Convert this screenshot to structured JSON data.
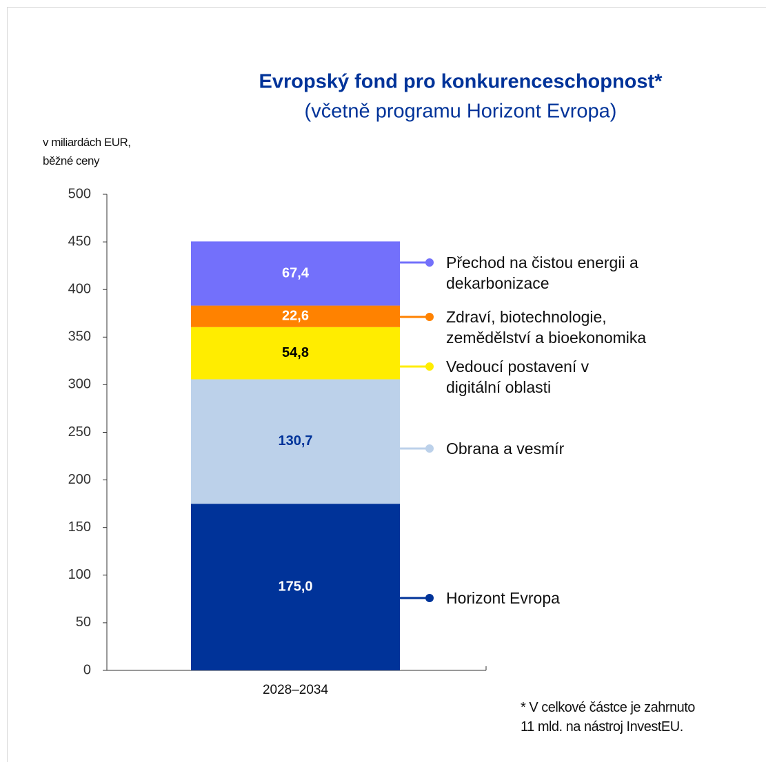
{
  "chart_data": {
    "type": "stacked_bar",
    "title": "Evropský fond pro konkurenceschopnost*",
    "subtitle": "(včetně programu Horizont Evropa)",
    "y_axis_label": "v miliardách EUR,\nběžné ceny",
    "footnote": "* V celkové částce je zahrnuto\n11 mld. na nástroj InvestEU.",
    "categories": [
      "2028–2034"
    ],
    "series": [
      {
        "name": "Horizont Evropa",
        "color": "#003399",
        "values": [
          175.0
        ],
        "value_labels": [
          "175,0"
        ]
      },
      {
        "name": "Obrana a vesmír",
        "color": "#bcd1ea",
        "values": [
          130.7
        ],
        "value_labels": [
          "130,7"
        ]
      },
      {
        "name": "Vedoucí postavení v\ndigitální oblasti",
        "color": "#ffed00",
        "values": [
          54.8
        ],
        "value_labels": [
          "54,8"
        ]
      },
      {
        "name": "Zdraví, biotechnologie,\nzemědělství a bioekonomika",
        "color": "#ff8200",
        "values": [
          22.6
        ],
        "value_labels": [
          "22,6"
        ]
      },
      {
        "name": "Přechod na čistou energii a\ndekarbonizace",
        "color": "#7370fb",
        "values": [
          67.4
        ],
        "value_labels": [
          "67,4"
        ]
      }
    ],
    "ylim": [
      0,
      500
    ],
    "yticks": [
      0,
      50,
      100,
      150,
      200,
      250,
      300,
      350,
      400,
      450,
      500
    ],
    "grid": false
  }
}
